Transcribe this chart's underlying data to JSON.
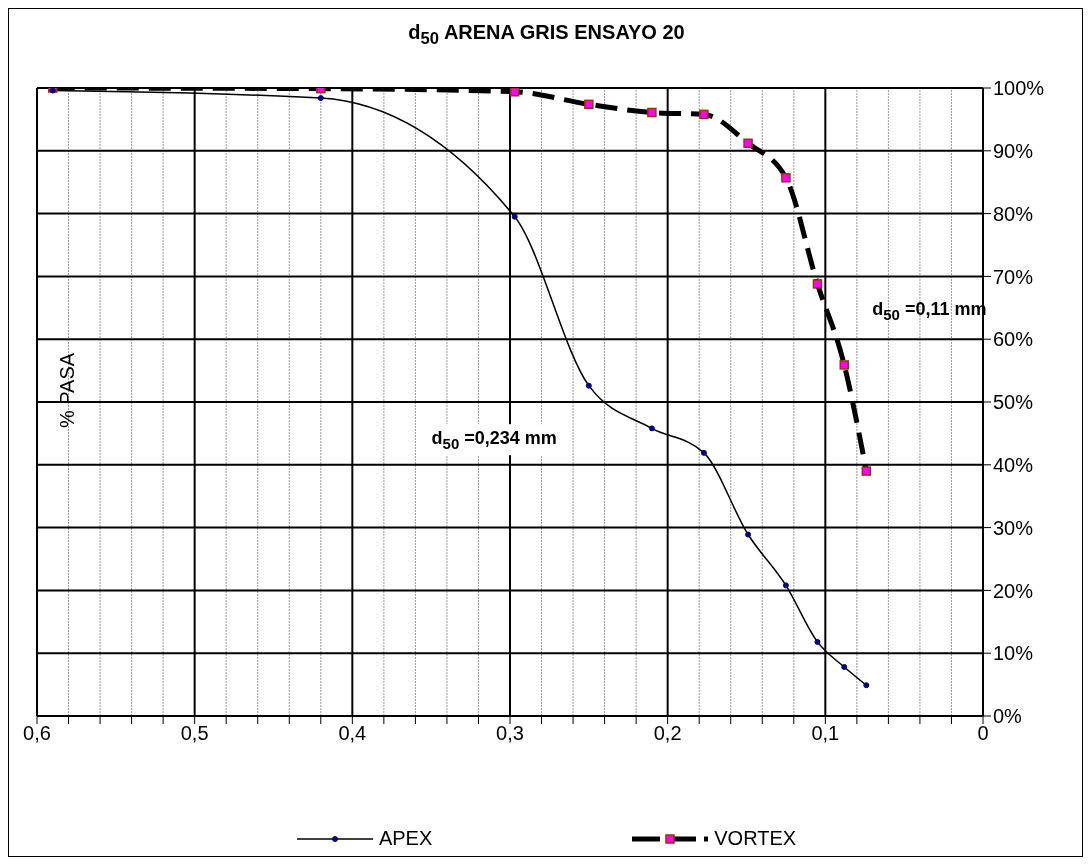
{
  "chart_data": {
    "type": "line",
    "title": "d$_{50}$ ARENA GRIS ENSAYO 20",
    "ylabel": "% PASA",
    "annotations": [
      "d$_{50}$ =0,234 mm",
      "d$_{50}$ =0,11 mm"
    ],
    "series": [
      {
        "name": "APEX",
        "color": "#000000",
        "marker": "circle",
        "line_style": "solid",
        "x": [
          0.59,
          0.42,
          0.297,
          0.25,
          0.21,
          0.177,
          0.149,
          0.125,
          0.105,
          0.088,
          0.074
        ],
        "values": [
          99.6,
          98.4,
          79.5,
          52.6,
          45.8,
          41.9,
          28.9,
          20.8,
          11.8,
          7.8,
          4.9
        ]
      },
      {
        "name": "VORTEX",
        "color": "#000000",
        "marker": "square",
        "line_style": "dashed",
        "x": [
          0.59,
          0.42,
          0.297,
          0.25,
          0.21,
          0.177,
          0.149,
          0.125,
          0.105,
          0.088,
          0.074
        ],
        "values": [
          100,
          99.9,
          99.4,
          97.4,
          96.1,
          95.8,
          91.2,
          85.7,
          68.8,
          55.9,
          39.0
        ]
      }
    ],
    "xlim": [
      0.6,
      0
    ],
    "xticks": [
      {
        "value": 0.6,
        "label": "0,6"
      },
      {
        "value": 0.58,
        "label": null
      },
      {
        "value": 0.56,
        "label": null
      },
      {
        "value": 0.54,
        "label": null
      },
      {
        "value": 0.52,
        "label": null
      },
      {
        "value": 0.5,
        "label": "0,5"
      },
      {
        "value": 0.48,
        "label": null
      },
      {
        "value": 0.46,
        "label": null
      },
      {
        "value": 0.44,
        "label": null
      },
      {
        "value": 0.42,
        "label": null
      },
      {
        "value": 0.4,
        "label": "0,4"
      },
      {
        "value": 0.38,
        "label": null
      },
      {
        "value": 0.36,
        "label": null
      },
      {
        "value": 0.34,
        "label": null
      },
      {
        "value": 0.32,
        "label": null
      },
      {
        "value": 0.3,
        "label": "0,3"
      },
      {
        "value": 0.28,
        "label": null
      },
      {
        "value": 0.26,
        "label": null
      },
      {
        "value": 0.24,
        "label": null
      },
      {
        "value": 0.22,
        "label": null
      },
      {
        "value": 0.2,
        "label": "0,2"
      },
      {
        "value": 0.18,
        "label": null
      },
      {
        "value": 0.16,
        "label": null
      },
      {
        "value": 0.14,
        "label": null
      },
      {
        "value": 0.12,
        "label": null
      },
      {
        "value": 0.1,
        "label": "0,1"
      },
      {
        "value": 0.08,
        "label": null
      },
      {
        "value": 0.06,
        "label": null
      },
      {
        "value": 0.04,
        "label": null
      },
      {
        "value": 0.02,
        "label": null
      },
      {
        "value": 0,
        "label": "0"
      }
    ],
    "ylim": [
      0,
      100
    ],
    "yticks": [
      {
        "value": 0,
        "label": "0%"
      },
      {
        "value": 10,
        "label": "10%"
      },
      {
        "value": 20,
        "label": "20%"
      },
      {
        "value": 30,
        "label": "30%"
      },
      {
        "value": 40,
        "label": "40%"
      },
      {
        "value": 50,
        "label": "50%"
      },
      {
        "value": 60,
        "label": "60%"
      },
      {
        "value": 70,
        "label": "70%"
      },
      {
        "value": 80,
        "label": "80%"
      },
      {
        "value": 90,
        "label": "90%"
      },
      {
        "value": 100,
        "label": "100%"
      }
    ],
    "grid": true,
    "legend": "bottom"
  }
}
